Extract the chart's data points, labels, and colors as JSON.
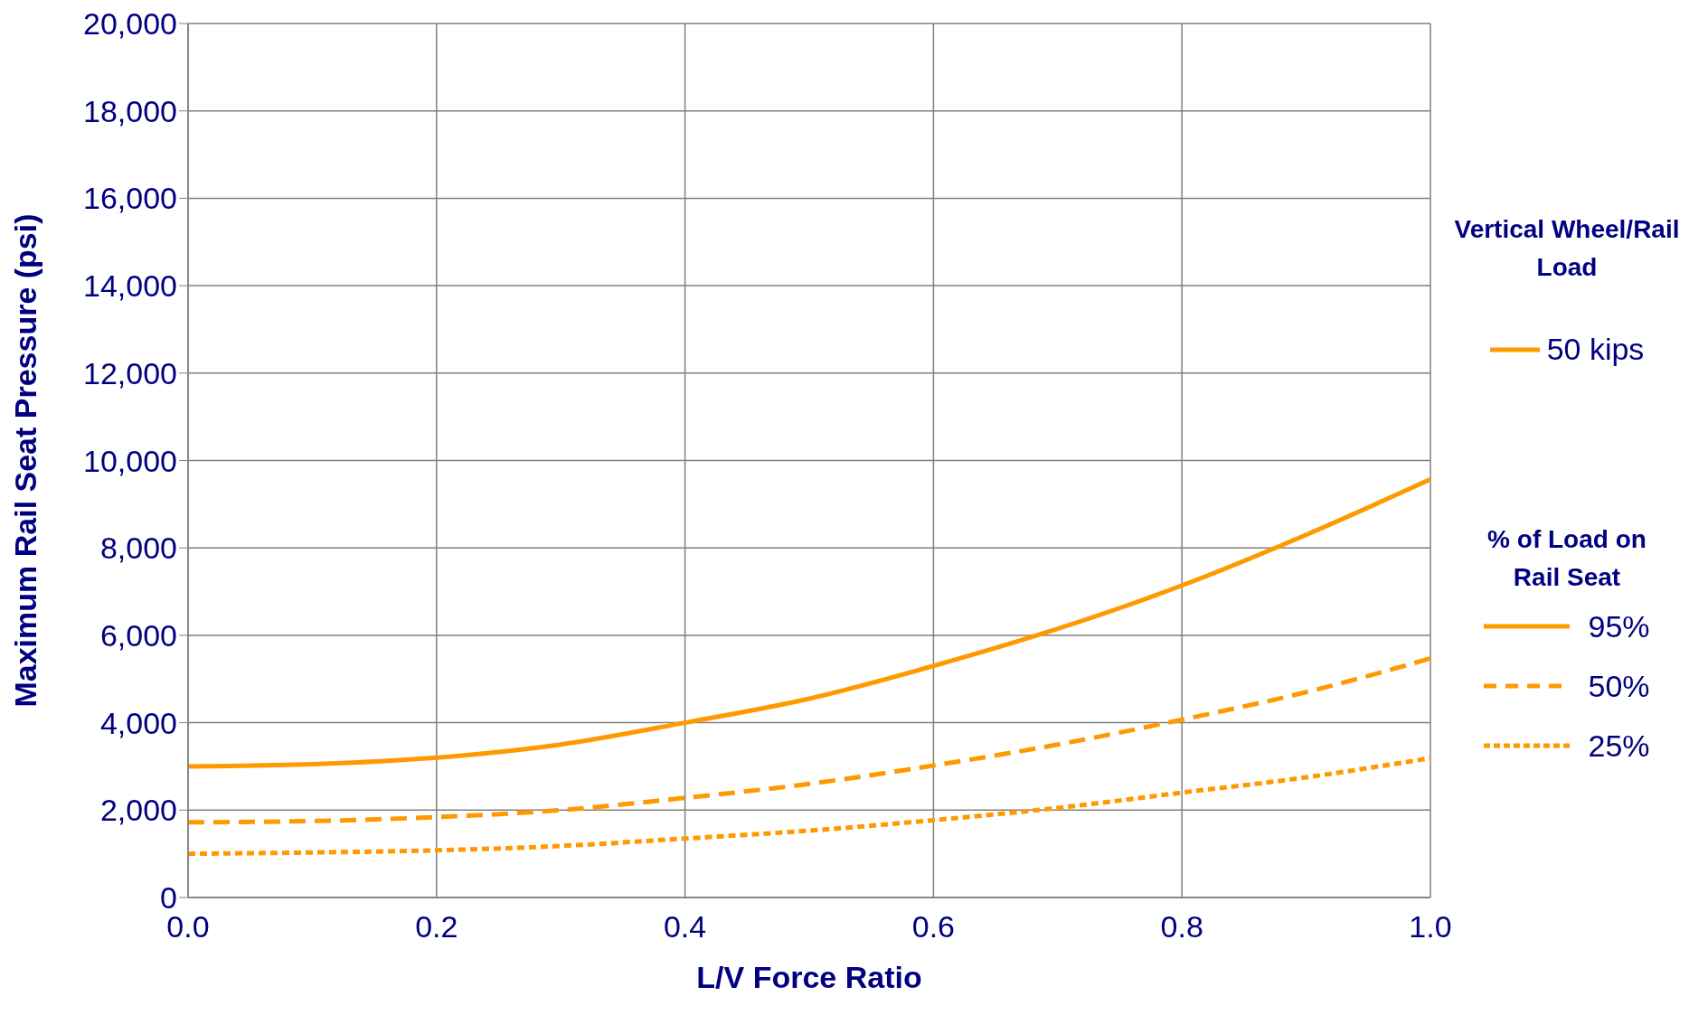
{
  "chart_data": {
    "type": "line",
    "xlabel": "L/V Force Ratio",
    "ylabel": "Maximum Rail Seat Pressure (psi)",
    "legend_title": "% of Load on Rail Seat",
    "x": [
      0,
      0.1,
      0.2,
      0.3,
      0.4,
      0.5,
      0.6,
      0.7,
      0.8,
      0.9,
      1.0
    ],
    "series": [
      {
        "name": "95%",
        "color": "#ff9900",
        "line_style": "solid",
        "values": [
          3000,
          3050,
          3200,
          3500,
          4000,
          4550,
          5300,
          6150,
          7140,
          8300,
          9570
        ]
      },
      {
        "name": "50%",
        "color": "#ff9900",
        "line_style": "dashed",
        "values": [
          1720,
          1750,
          1840,
          2000,
          2280,
          2600,
          3020,
          3500,
          4070,
          4700,
          5470
        ]
      },
      {
        "name": "25%",
        "color": "#ff9900",
        "line_style": "dotted",
        "values": [
          1000,
          1030,
          1080,
          1180,
          1350,
          1530,
          1770,
          2050,
          2400,
          2750,
          3190
        ]
      }
    ],
    "xlim": [
      0,
      1
    ],
    "xticks": [
      {
        "value": 0,
        "label": "0.0"
      },
      0.2,
      0.4,
      0.6,
      0.8,
      {
        "value": 1,
        "label": "1.0"
      }
    ],
    "ylim": [
      0,
      20000
    ],
    "yticks": [
      {
        "value": 0,
        "label": "0"
      },
      {
        "value": 2000,
        "label": "2,000"
      },
      {
        "value": 4000,
        "label": "4,000"
      },
      {
        "value": 6000,
        "label": "6,000"
      },
      {
        "value": 8000,
        "label": "8,000"
      },
      {
        "value": 10000,
        "label": "10,000"
      },
      {
        "value": 12000,
        "label": "12,000"
      },
      {
        "value": 14000,
        "label": "14,000"
      },
      {
        "value": 16000,
        "label": "16,000"
      },
      {
        "value": 18000,
        "label": "18,000"
      },
      {
        "value": 20000,
        "label": "20,000"
      }
    ],
    "grid": true,
    "legend": "right",
    "marker": "none",
    "annotations": [
      "Vertical Wheel/Rail  Load",
      "50 kips"
    ]
  }
}
